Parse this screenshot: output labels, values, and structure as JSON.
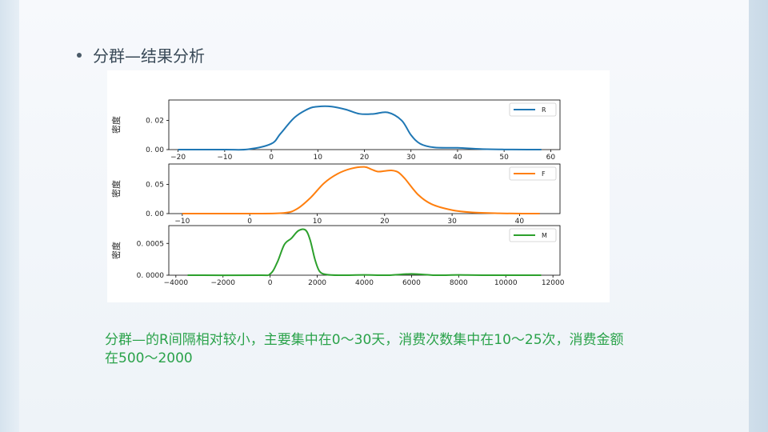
{
  "heading": "分群—结果分析",
  "caption": {
    "line1": "分群—的R间隔相对较小，主要集中在0～30天，消费次数集中在10～25次，消费金额",
    "line2": "在500～2000"
  },
  "chart_data": [
    {
      "type": "line",
      "ylabel": "密度",
      "legend": "R",
      "color": "#1f77b4",
      "legend_position": "top-right",
      "xlim": [
        -22,
        62
      ],
      "ylim": [
        0,
        0.034
      ],
      "xticks": [
        -20,
        -10,
        0,
        10,
        20,
        30,
        40,
        50,
        60
      ],
      "xtick_labels": [
        "−20",
        "−10",
        "0",
        "10",
        "20",
        "30",
        "40",
        "50",
        "60"
      ],
      "yticks": [
        0,
        0.02
      ],
      "ytick_labels": [
        "0. 00",
        "0. 02"
      ],
      "x": [
        -20,
        -10,
        -5,
        0,
        2,
        5,
        8,
        10,
        13,
        16,
        19,
        22,
        25,
        28,
        30,
        32,
        35,
        40,
        45,
        50,
        55,
        58
      ],
      "y": [
        0,
        0,
        0.0002,
        0.004,
        0.011,
        0.022,
        0.028,
        0.0295,
        0.0295,
        0.0275,
        0.0245,
        0.0245,
        0.0255,
        0.02,
        0.01,
        0.004,
        0.0015,
        0.0012,
        0.0004,
        0.0001,
        0,
        0
      ]
    },
    {
      "type": "line",
      "ylabel": "密度",
      "legend": "F",
      "color": "#ff7f0e",
      "legend_position": "top-right",
      "xlim": [
        -12,
        46
      ],
      "ylim": [
        0,
        0.085
      ],
      "xticks": [
        -10,
        0,
        10,
        20,
        30,
        40
      ],
      "xtick_labels": [
        "−10",
        "0",
        "10",
        "20",
        "30",
        "40"
      ],
      "yticks": [
        0,
        0.05
      ],
      "ytick_labels": [
        "0. 00",
        "0. 05"
      ],
      "x": [
        -10,
        0,
        5,
        7,
        9,
        11,
        13,
        15,
        17,
        18,
        19,
        20,
        21,
        22,
        23,
        25,
        27,
        30,
        33,
        37,
        41,
        43
      ],
      "y": [
        0,
        0,
        0.001,
        0.008,
        0.027,
        0.052,
        0.068,
        0.077,
        0.08,
        0.076,
        0.072,
        0.073,
        0.074,
        0.071,
        0.06,
        0.032,
        0.016,
        0.006,
        0.002,
        0.0005,
        0,
        0
      ]
    },
    {
      "type": "line",
      "ylabel": "密度",
      "legend": "M",
      "color": "#2ca02c",
      "legend_position": "top-right",
      "xlim": [
        -4300,
        12300
      ],
      "ylim": [
        0,
        0.00078
      ],
      "xticks": [
        -4000,
        -2000,
        0,
        2000,
        4000,
        6000,
        8000,
        10000,
        12000
      ],
      "xtick_labels": [
        "−4000",
        "−2000",
        "0",
        "2000",
        "4000",
        "6000",
        "8000",
        "10000",
        "12000"
      ],
      "yticks": [
        0,
        0.0005
      ],
      "ytick_labels": [
        "0. 0000",
        "0. 0005"
      ],
      "x": [
        -3500,
        -500,
        0,
        300,
        600,
        900,
        1200,
        1500,
        1700,
        1900,
        2100,
        2400,
        3000,
        4000,
        5000,
        6000,
        7000,
        8000,
        9000,
        11500
      ],
      "y": [
        0,
        0,
        2e-05,
        0.0002,
        0.00048,
        0.00058,
        0.0007,
        0.00071,
        0.00055,
        0.00025,
        6e-05,
        1e-05,
        0,
        5e-06,
        0,
        2e-05,
        0,
        5e-06,
        0,
        0
      ]
    }
  ]
}
